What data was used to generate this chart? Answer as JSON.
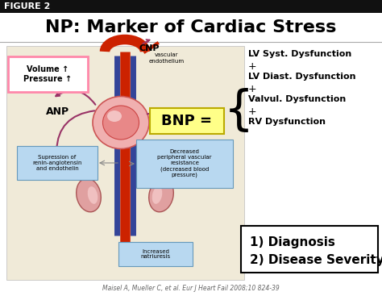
{
  "title": "NP: Marker of Cardiac Stress",
  "figure_label": "FIGURE 2",
  "bg_color": "#ffffff",
  "header_bg": "#111111",
  "header_text_color": "#ffffff",
  "title_fontsize": 16,
  "body_bg": "#f0ead8",
  "volume_pressure_text": "Volume ↑\nPressure ↑",
  "volume_box_color": "#ffffff",
  "volume_box_edge": "#ff88aa",
  "anp_text": "ANP",
  "cnp_text": "CNP",
  "cnp_sub": "vascular\nendothelium",
  "bnp_text": "BNP =",
  "bnp_box_color": "#ffff88",
  "bnp_box_edge": "#bbaa00",
  "right_text_lines": [
    "LV Syst. Dysfunction",
    "+",
    "LV Diast. Dysfunction",
    "+",
    "Valvul. Dysfunction",
    "+",
    "RV Dysfunction"
  ],
  "diagnosis_line1": "1) Diagnosis",
  "diagnosis_line2": "2) Disease Severity",
  "diagnosis_box_color": "#ffffff",
  "diagnosis_box_edge": "#000000",
  "suppress_text": "Supression of\nrenin-angiotensin\nand endothelin",
  "suppress_box_color": "#b8d8f0",
  "decreased_text": "Decreased\nperipheral vascular\nresistance\n(decreased blood\npressure)",
  "decreased_box_color": "#b8d8f0",
  "natriuresis_text": "Increased\nnatriuresis",
  "natriuresis_box_color": "#b8d8f0",
  "citation": "Maisel A, Mueller C, et al. Eur J Heart Fail 2008;10 824-39",
  "purple": "#993366",
  "red": "#cc2200",
  "blue": "#334499"
}
